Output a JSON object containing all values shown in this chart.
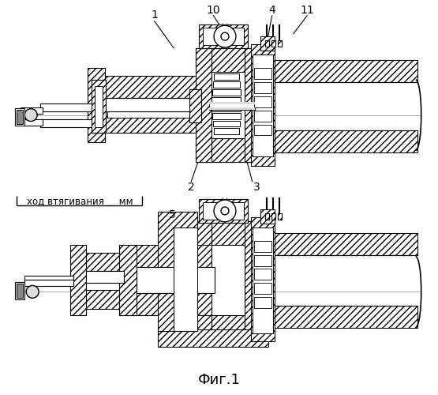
{
  "title": "Фиг.1",
  "annotation_text": "ход втягивания     мм",
  "background_color": "#ffffff",
  "number_fontsize": 10,
  "fig_label_fontsize": 13,
  "anno_fontsize": 8.5
}
